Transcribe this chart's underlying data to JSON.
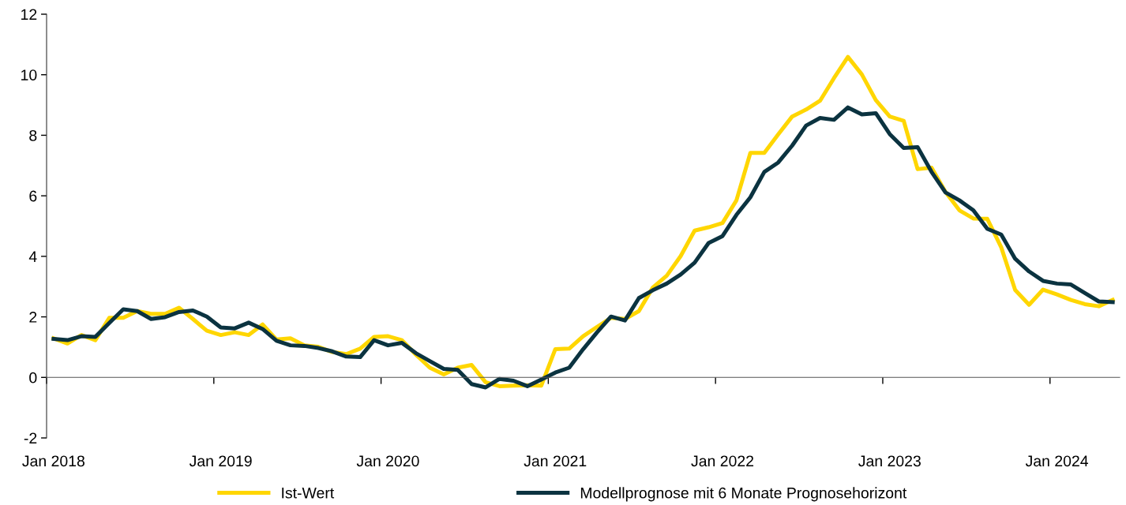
{
  "chart_data": {
    "type": "line",
    "categories": [
      "Jan 2018",
      null,
      null,
      null,
      null,
      null,
      null,
      null,
      null,
      null,
      null,
      null,
      "Jan 2019",
      null,
      null,
      null,
      null,
      null,
      null,
      null,
      null,
      null,
      null,
      null,
      "Jan 2020",
      null,
      null,
      null,
      null,
      null,
      null,
      null,
      null,
      null,
      null,
      null,
      "Jan 2021",
      null,
      null,
      null,
      null,
      null,
      null,
      null,
      null,
      null,
      null,
      null,
      "Jan 2022",
      null,
      null,
      null,
      null,
      null,
      null,
      null,
      null,
      null,
      null,
      null,
      "Jan 2023",
      null,
      null,
      null,
      null,
      null,
      null,
      null,
      null,
      null,
      null,
      null,
      "Jan 2024",
      null,
      null,
      null,
      null
    ],
    "series": [
      {
        "name": "Ist-Wert",
        "color": "#ffd600",
        "values": [
          1.29,
          1.12,
          1.4,
          1.23,
          1.97,
          1.97,
          2.19,
          2.1,
          2.1,
          2.3,
          1.93,
          1.54,
          1.4,
          1.49,
          1.4,
          1.75,
          1.25,
          1.29,
          1.06,
          1.01,
          0.84,
          0.77,
          0.95,
          1.34,
          1.36,
          1.23,
          0.75,
          0.32,
          0.1,
          0.32,
          0.41,
          -0.16,
          -0.29,
          -0.27,
          -0.26,
          -0.27,
          0.93,
          0.95,
          1.36,
          1.67,
          1.97,
          1.93,
          2.19,
          2.97,
          3.36,
          4.01,
          4.85,
          4.96,
          5.1,
          5.85,
          7.42,
          7.42,
          8.03,
          8.62,
          8.85,
          9.14,
          9.89,
          10.59,
          10.01,
          9.16,
          8.62,
          8.48,
          6.88,
          6.93,
          6.13,
          5.52,
          5.25,
          5.24,
          4.3,
          2.89,
          2.4,
          2.9,
          2.74,
          2.56,
          2.42,
          2.35,
          2.56
        ]
      },
      {
        "name": "Modellprognose mit 6 Monate Prognosehorizont",
        "color": "#0b3340",
        "values": [
          1.27,
          1.23,
          1.36,
          1.34,
          1.8,
          2.25,
          2.19,
          1.93,
          1.99,
          2.16,
          2.21,
          2.01,
          1.65,
          1.62,
          1.81,
          1.6,
          1.21,
          1.06,
          1.04,
          0.97,
          0.86,
          0.69,
          0.67,
          1.23,
          1.06,
          1.14,
          0.8,
          0.54,
          0.28,
          0.25,
          -0.22,
          -0.33,
          -0.05,
          -0.11,
          -0.29,
          -0.07,
          0.16,
          0.32,
          0.93,
          1.49,
          2.01,
          1.88,
          2.62,
          2.88,
          3.1,
          3.4,
          3.79,
          4.44,
          4.67,
          5.37,
          5.95,
          6.79,
          7.1,
          7.66,
          8.32,
          8.57,
          8.51,
          8.92,
          8.69,
          8.73,
          8.04,
          7.58,
          7.61,
          6.79,
          6.11,
          5.85,
          5.52,
          4.91,
          4.72,
          3.92,
          3.5,
          3.19,
          3.1,
          3.07,
          2.79,
          2.51,
          2.49
        ]
      }
    ],
    "ylim": [
      -2,
      12
    ],
    "yticks": [
      -2,
      0,
      2,
      4,
      6,
      8,
      10,
      12
    ],
    "legend": "bottom",
    "marker": "none",
    "line_style": "solid"
  }
}
